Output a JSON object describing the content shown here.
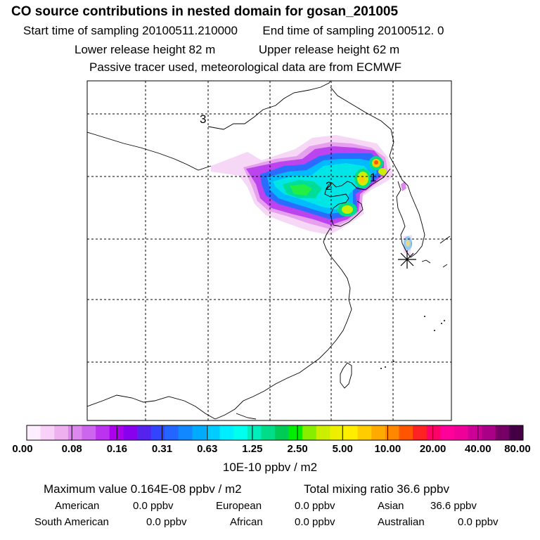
{
  "header": {
    "title": "CO  source contributions in nested domain for gosan_201005",
    "sampling_start": "Start time of sampling 20100511.210000",
    "sampling_end": "End time of sampling 20100512.     0",
    "lower_release": "Lower release height   82 m",
    "upper_release": "Upper release height   62 m",
    "tracer_note": "Passive tracer used, meteorological data are from ECMWF"
  },
  "map": {
    "labels": [
      "3",
      "2",
      "1"
    ],
    "receptor_marker": "asterisk-marker"
  },
  "colorbar": {
    "colors": [
      "#ffeeff",
      "#f8d0f8",
      "#eeb0ee",
      "#dd88ee",
      "#cc66ee",
      "#bb33ee",
      "#aa00ee",
      "#8800ee",
      "#5522ee",
      "#3344ff",
      "#2266ff",
      "#1188ff",
      "#00aaff",
      "#00ccff",
      "#00eeff",
      "#00ffee",
      "#00eebb",
      "#00dd88",
      "#00cc55",
      "#00ee00",
      "#88ee00",
      "#ccee00",
      "#eeee00",
      "#ffee00",
      "#ffcc00",
      "#ffaa00",
      "#ff8800",
      "#ff5500",
      "#ff2222",
      "#ff0066",
      "#ff0099",
      "#ee0099",
      "#cc0099",
      "#aa0088",
      "#770066",
      "#440044"
    ],
    "tick_labels": [
      "0.00",
      "0.08",
      "0.16",
      "0.31",
      "0.63",
      "1.25",
      "2.50",
      "5.00",
      "10.00",
      "20.00",
      "40.00",
      "80.00"
    ],
    "unit": "10E-10 ppbv / m2"
  },
  "stats": {
    "max_value": "Maximum value  0.164E-08 ppbv / m2",
    "total_mixing": "Total mixing ratio       36.6 ppbv",
    "american_label": "American",
    "american_value": "0.0 ppbv",
    "european_label": "European",
    "european_value": "0.0 ppbv",
    "asian_label": "Asian",
    "asian_value": "36.6 ppbv",
    "south_american_label": "South American",
    "south_american_value": "0.0 ppbv",
    "african_label": "African",
    "african_value": "0.0 ppbv",
    "australian_label": "Australian",
    "australian_value": "0.0 ppbv"
  }
}
